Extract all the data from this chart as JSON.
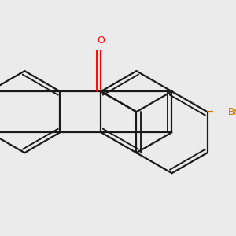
{
  "background_color": "#ebebeb",
  "bond_color": "#1a1a1a",
  "oxygen_color": "#ff0000",
  "bromine_color": "#cc7700",
  "bond_lw": 1.6,
  "dbl_off": 0.055,
  "figsize": [
    3.0,
    3.0
  ],
  "dpi": 100,
  "xlim": [
    -2.8,
    2.4
  ],
  "ylim": [
    -1.8,
    1.8
  ]
}
